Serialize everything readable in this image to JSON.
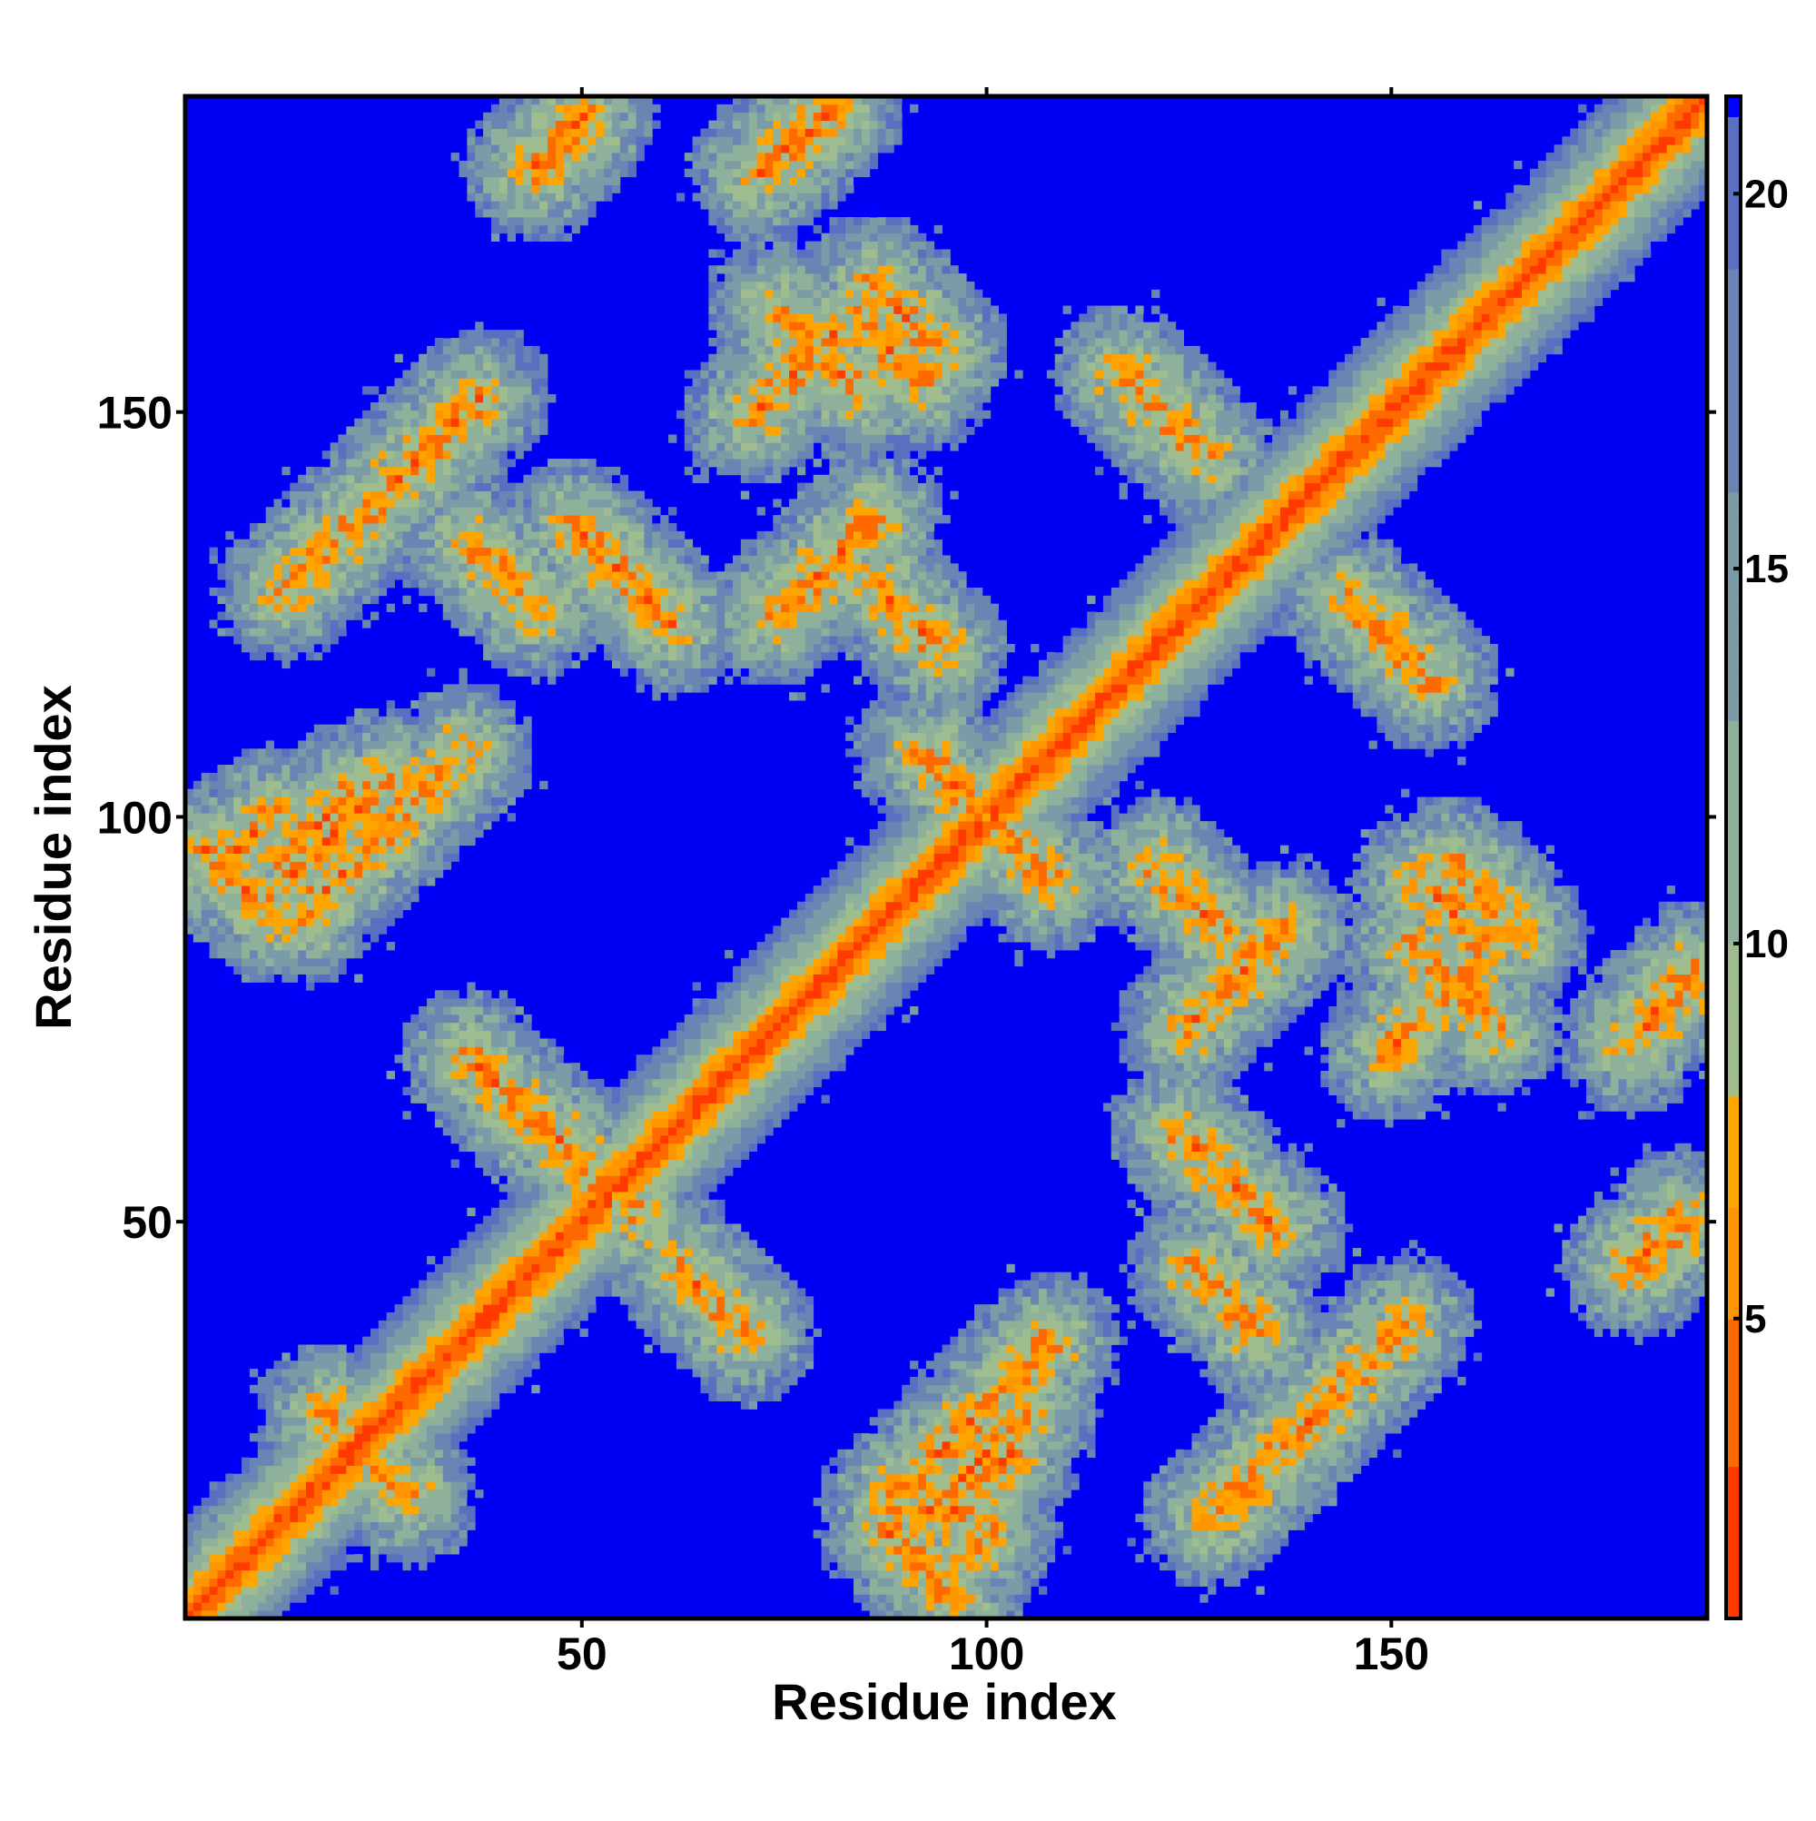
{
  "chart_data": {
    "type": "heatmap",
    "xlabel": "Residue index",
    "ylabel": "Residue index",
    "x_range": [
      1,
      189
    ],
    "y_range": [
      1,
      189
    ],
    "n_residues": 189,
    "x_ticks": [
      50,
      100,
      150
    ],
    "x_tick_labels": [
      "50",
      "100",
      "150"
    ],
    "y_ticks": [
      50,
      100,
      150
    ],
    "y_tick_labels": [
      "50",
      "100",
      "150"
    ],
    "colorbar": {
      "range": [
        1,
        21.3
      ],
      "ticks": [
        5,
        10,
        15,
        20
      ],
      "tick_labels": [
        "5",
        "10",
        "15",
        "20"
      ],
      "colors": [
        {
          "value": 1,
          "color": "#ff0000"
        },
        {
          "value": 3,
          "color": "#ff3a00"
        },
        {
          "value": 5,
          "color": "#ff6a00"
        },
        {
          "value": 6.5,
          "color": "#ff9500"
        },
        {
          "value": 8,
          "color": "#ffa500"
        },
        {
          "value": 8.01,
          "color": "#a9bf80"
        },
        {
          "value": 10,
          "color": "#9fbd8e"
        },
        {
          "value": 13,
          "color": "#8fb09a"
        },
        {
          "value": 16,
          "color": "#7b9ba6"
        },
        {
          "value": 19,
          "color": "#6a85b3"
        },
        {
          "value": 21,
          "color": "#5a6fc0"
        },
        {
          "value": 21.3,
          "color": "#0000ff"
        }
      ]
    },
    "background_color": "#0000f5",
    "grid": false,
    "legend": "colorbar-right",
    "description": "Symmetric residue-residue distance map; red/orange = close contacts, grey-green = intermediate, blue = distant",
    "contact_bands": [
      {
        "type": "diag",
        "from": 1,
        "to": 189
      },
      {
        "type": "anti",
        "center": [
          100,
          100
        ],
        "half_length": 8
      },
      {
        "type": "anti",
        "center": [
          79,
          158
        ],
        "half_length": 5
      },
      {
        "type": "anti",
        "center": [
          158,
          79
        ],
        "half_length": 5
      },
      {
        "type": "anti",
        "center": [
          90,
          162
        ],
        "half_length": 4
      },
      {
        "type": "anti",
        "center": [
          162,
          90
        ],
        "half_length": 4
      },
      {
        "type": "anti",
        "center": [
          125,
          90
        ],
        "half_length": 4
      },
      {
        "type": "anti",
        "center": [
          90,
          125
        ],
        "half_length": 4
      },
      {
        "type": "anti",
        "center": [
          158,
          88
        ],
        "half_length": 4
      },
      {
        "type": "anti",
        "center": [
          88,
          158
        ],
        "half_length": 4
      },
      {
        "type": "par",
        "center": [
          131,
          80
        ],
        "half_length": 6
      },
      {
        "type": "par",
        "center": [
          80,
          131
        ],
        "half_length": 6
      },
      {
        "type": "par",
        "center": [
          155,
          76
        ],
        "half_length": 5
      },
      {
        "type": "par",
        "center": [
          76,
          155
        ],
        "half_length": 5
      },
      {
        "type": "par",
        "center": [
          185,
          78
        ],
        "half_length": 3
      },
      {
        "type": "par",
        "center": [
          78,
          185
        ],
        "half_length": 3
      },
      {
        "type": "par",
        "center": [
          184,
          47
        ],
        "half_length": 3
      },
      {
        "type": "par",
        "center": [
          47,
          184
        ],
        "half_length": 3
      },
      {
        "type": "par",
        "center": [
          47,
          183
        ],
        "half_length": 3
      },
      {
        "type": "par",
        "center": [
          183,
          47
        ],
        "half_length": 3
      },
      {
        "type": "par",
        "center": [
          76,
          184
        ],
        "half_length": 4
      },
      {
        "type": "par",
        "center": [
          184,
          76
        ],
        "half_length": 4
      },
      {
        "type": "anti",
        "center": [
          92,
          7
        ],
        "half_length": 4
      },
      {
        "type": "anti",
        "center": [
          7,
          92
        ],
        "half_length": 4
      },
      {
        "type": "par",
        "center": [
          99,
          20
        ],
        "half_length": 6
      },
      {
        "type": "par",
        "center": [
          20,
          99
        ],
        "half_length": 6
      },
      {
        "type": "par",
        "center": [
          8,
          97
        ],
        "half_length": 3
      },
      {
        "type": "par",
        "center": [
          97,
          8
        ],
        "half_length": 3
      },
      {
        "type": "anti",
        "center": [
          23,
          21
        ],
        "half_length": 5
      },
      {
        "type": "anti",
        "center": [
          52,
          55
        ],
        "half_length": 5
      },
      {
        "type": "anti",
        "center": [
          66,
          40
        ],
        "half_length": 4
      },
      {
        "type": "anti",
        "center": [
          40,
          66
        ],
        "half_length": 4
      },
      {
        "type": "par",
        "center": [
          99,
          17
        ],
        "half_length": 4
      },
      {
        "type": "par",
        "center": [
          17,
          99
        ],
        "half_length": 4
      },
      {
        "type": "anti",
        "center": [
          130,
          40
        ],
        "half_length": 4
      },
      {
        "type": "anti",
        "center": [
          40,
          130
        ],
        "half_length": 4
      },
      {
        "type": "par",
        "center": [
          140,
          25
        ],
        "half_length": 12
      },
      {
        "type": "par",
        "center": [
          25,
          140
        ],
        "half_length": 12
      },
      {
        "type": "par",
        "center": [
          98,
          25
        ],
        "half_length": 10
      },
      {
        "type": "par",
        "center": [
          25,
          98
        ],
        "half_length": 10
      },
      {
        "type": "anti",
        "center": [
          55,
          130
        ],
        "half_length": 6
      },
      {
        "type": "anti",
        "center": [
          130,
          55
        ],
        "half_length": 6
      },
      {
        "type": "anti",
        "center": [
          150,
          122
        ],
        "half_length": 5
      },
      {
        "type": "anti",
        "center": [
          122,
          150
        ],
        "half_length": 5
      }
    ]
  }
}
